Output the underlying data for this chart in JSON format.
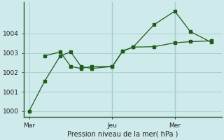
{
  "background_color": "#ceeaea",
  "grid_color": "#aad0d0",
  "line_color": "#1e5c1e",
  "xlabel": "Pression niveau de la mer( hPa )",
  "ylim": [
    999.7,
    1005.6
  ],
  "yticks": [
    1000,
    1001,
    1002,
    1003,
    1004
  ],
  "xtick_labels": [
    "Mar",
    "Jeu",
    "Mer"
  ],
  "xtick_positions": [
    0.5,
    8.5,
    14.5
  ],
  "vline_positions": [
    8.5,
    14.5
  ],
  "series1_x": [
    0.5,
    2.0,
    3.5,
    4.5,
    5.5,
    6.5,
    8.5,
    9.5,
    10.5,
    12.5,
    14.5,
    16.0,
    18.0
  ],
  "series1_y": [
    1000.0,
    1001.55,
    1002.85,
    1003.05,
    1002.3,
    1002.2,
    1002.3,
    1003.1,
    1003.3,
    1004.45,
    1005.15,
    1004.1,
    1003.55
  ],
  "series2_x": [
    2.0,
    3.5,
    4.5,
    5.5,
    6.5,
    8.5,
    9.5,
    10.5,
    12.5,
    14.5,
    16.0,
    18.0
  ],
  "series2_y": [
    1002.85,
    1003.05,
    1002.3,
    1002.2,
    1002.3,
    1002.3,
    1003.1,
    1003.3,
    1003.32,
    1003.52,
    1003.58,
    1003.62
  ],
  "xlim": [
    0.0,
    19.0
  ],
  "figsize": [
    3.2,
    2.0
  ],
  "dpi": 100
}
